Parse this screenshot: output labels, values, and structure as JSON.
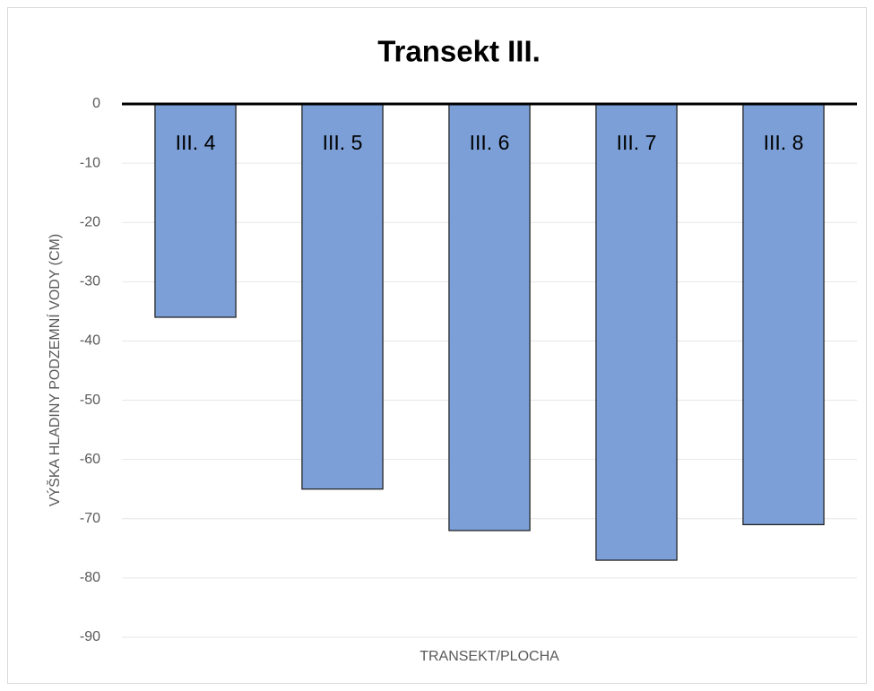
{
  "chart_data": {
    "type": "bar",
    "title": "Transekt III.",
    "x_label": "TRANSEKT/PLOCHA",
    "y_label": "VÝŠKA HLADINY PODZEMNÍ VODY (CM)",
    "categories": [
      "III. 4",
      "III. 5",
      "III. 6",
      "III. 7",
      "III. 8"
    ],
    "values": [
      -36,
      -65,
      -72,
      -77,
      -71
    ],
    "color": "#7b9fd6",
    "ylim": [
      -90,
      0
    ],
    "yticks": [
      0,
      -10,
      -20,
      -30,
      -40,
      -50,
      -60,
      -70,
      -80,
      -90
    ],
    "grid": true
  }
}
